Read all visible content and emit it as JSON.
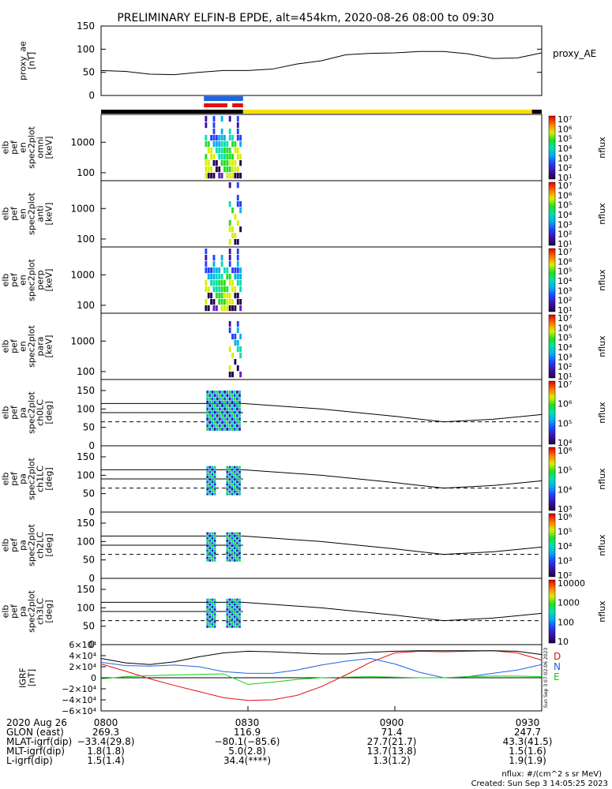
{
  "title": "PRELIMINARY ELFIN-B EPDE, alt=454km, 2020-08-26 08:00 to 09:30",
  "colors": {
    "frame": "#000000",
    "red": "#e01010",
    "blue": "#1e64e6",
    "yellow": "#f5e000",
    "green": "#10d010",
    "ae": "#000000"
  },
  "chart_data": [
    {
      "id": "proxy_ae",
      "type": "line",
      "ylabel": [
        "proxy_ae",
        "[nT]"
      ],
      "legend": "proxy_AE",
      "ylim": [
        0,
        150
      ],
      "yticks": [
        "150",
        "100",
        "50",
        "0"
      ],
      "x_minutes": [
        0,
        5,
        10,
        15,
        20,
        25,
        30,
        35,
        40,
        45,
        50,
        55,
        60,
        65,
        70,
        75,
        80,
        85,
        90
      ],
      "values": [
        54,
        52,
        46,
        45,
        50,
        54,
        54,
        57,
        68,
        75,
        88,
        91,
        92,
        95,
        95,
        90,
        80,
        81,
        92
      ]
    },
    {
      "id": "ribbons",
      "type": "bars",
      "segments": [
        {
          "color": "black",
          "from": 0,
          "to": 29.0
        },
        {
          "color": "yellow",
          "from": 29.0,
          "to": 88.0
        },
        {
          "color": "black",
          "from": 88.0,
          "to": 90
        }
      ],
      "blue_bar": {
        "from": 21.0,
        "to": 29.0
      },
      "red_bars": [
        {
          "from": 21.0,
          "to": 25.8
        },
        {
          "from": 26.8,
          "to": 29.0
        }
      ]
    },
    {
      "id": "en_omni",
      "type": "heatmap",
      "ylabel": [
        "elb",
        "pef",
        "en",
        "spec2plot",
        "omni",
        "[keV]"
      ],
      "yticks": [
        "1000",
        "100"
      ],
      "cbar_label": "nflux",
      "cbar_ticks": [
        "10⁷",
        "10⁶",
        "10⁵",
        "10⁴",
        "10³",
        "10²",
        "10¹"
      ]
    },
    {
      "id": "en_anti",
      "type": "heatmap",
      "ylabel": [
        "elb",
        "pef",
        "en",
        "spec2plot",
        "anti",
        "[keV]"
      ],
      "yticks": [
        "1000",
        "100"
      ],
      "cbar_label": "nflux",
      "cbar_ticks": [
        "10⁷",
        "10⁶",
        "10⁵",
        "10⁴",
        "10³",
        "10²",
        "10¹"
      ]
    },
    {
      "id": "en_perp",
      "type": "heatmap",
      "ylabel": [
        "elb",
        "pef",
        "en",
        "spec2plot",
        "perp",
        "[keV]"
      ],
      "yticks": [
        "1000",
        "100"
      ],
      "cbar_label": "nflux",
      "cbar_ticks": [
        "10⁷",
        "10⁶",
        "10⁵",
        "10⁴",
        "10³",
        "10²",
        "10¹"
      ]
    },
    {
      "id": "en_para",
      "type": "heatmap",
      "ylabel": [
        "elb",
        "pef",
        "en",
        "spec2plot",
        "para",
        "[keV]"
      ],
      "yticks": [
        "1000",
        "100"
      ],
      "cbar_label": "nflux",
      "cbar_ticks": [
        "10⁷",
        "10⁶",
        "10⁵",
        "10⁴",
        "10³",
        "10²",
        "10¹"
      ]
    },
    {
      "id": "pa_ch0",
      "type": "heatmap",
      "ylabel": [
        "elb",
        "pef",
        "pa",
        "spec2plot",
        "ch0LC",
        "[deg]"
      ],
      "yticks": [
        "150",
        "100",
        "50",
        "0"
      ],
      "cbar_label": "nflux",
      "cbar_ticks": [
        "10⁷",
        "10⁶",
        "10⁵",
        "10⁴"
      ]
    },
    {
      "id": "pa_ch1",
      "type": "heatmap",
      "ylabel": [
        "elb",
        "pef",
        "pa",
        "spec2plot",
        "ch1LC",
        "[deg]"
      ],
      "yticks": [
        "150",
        "100",
        "50",
        "0"
      ],
      "cbar_label": "nflux",
      "cbar_ticks": [
        "10⁶",
        "10⁵",
        "10⁴",
        "10³"
      ]
    },
    {
      "id": "pa_ch2",
      "type": "heatmap",
      "ylabel": [
        "elb",
        "pef",
        "pa",
        "spec2plot",
        "ch2LC",
        "[deg]"
      ],
      "yticks": [
        "150",
        "100",
        "50",
        "0"
      ],
      "cbar_label": "nflux",
      "cbar_ticks": [
        "10⁶",
        "10⁵",
        "10⁴",
        "10³",
        "10²"
      ]
    },
    {
      "id": "pa_ch3",
      "type": "heatmap",
      "ylabel": [
        "elb",
        "pef",
        "pa",
        "spec2plot",
        "ch3LC",
        "[deg]"
      ],
      "yticks": [
        "150",
        "100",
        "50",
        "0"
      ],
      "cbar_label": "nflux",
      "cbar_ticks": [
        "10000",
        "1000",
        "100",
        "10"
      ]
    },
    {
      "id": "igrf",
      "type": "line",
      "ylabel": [
        "IGRF",
        "[nT]"
      ],
      "ylim": [
        -60000,
        60000
      ],
      "yticks": [
        "6×10⁴",
        "4×10⁴",
        "2×10⁴",
        "0",
        "−2×10⁴",
        "−4×10⁴",
        "−6×10⁴"
      ],
      "x_minutes": [
        0,
        5,
        10,
        15,
        20,
        25,
        30,
        35,
        40,
        45,
        50,
        55,
        60,
        65,
        70,
        75,
        80,
        85,
        90
      ],
      "series": [
        {
          "name": "D",
          "color": "red",
          "values": [
            25000,
            12000,
            -2000,
            -14000,
            -25000,
            -36000,
            -41000,
            -40000,
            -32000,
            -16000,
            5000,
            28000,
            45000,
            48000,
            47000,
            48000,
            49000,
            45000,
            32000
          ]
        },
        {
          "name": "N",
          "color": "blue",
          "values": [
            28000,
            22000,
            21000,
            23000,
            20000,
            11000,
            8000,
            8000,
            14000,
            23000,
            30000,
            35000,
            25000,
            10000,
            0,
            2000,
            8000,
            14000,
            24000
          ]
        },
        {
          "name": "E",
          "color": "green",
          "values": [
            -2000,
            2000,
            4000,
            5000,
            6000,
            7000,
            -12000,
            -8000,
            -3000,
            0,
            1000,
            2000,
            1000,
            0,
            0,
            2000,
            3000,
            3000,
            2000
          ]
        },
        {
          "color": "black",
          "values": [
            35000,
            27000,
            24000,
            29000,
            38000,
            45000,
            48000,
            47000,
            45000,
            43000,
            43000,
            46000,
            48000,
            49000,
            49000,
            49000,
            49000,
            48000,
            42000
          ]
        }
      ],
      "sidebar_text": "Sun Sep  3 07:02:06 2023"
    }
  ],
  "footer": {
    "rows": [
      {
        "label": "2020 Aug 26",
        "values": [
          "0800",
          "0830",
          "0900",
          "0930"
        ]
      },
      {
        "label": "GLON (east)",
        "values": [
          "269.3",
          "116.9",
          "71.4",
          "247.7"
        ]
      },
      {
        "label": "MLAT-igrf(dip)",
        "values": [
          "−33.4(29.8)",
          "−80.1(−85.6)",
          "27.7(21.7)",
          "43.3(41.5)"
        ]
      },
      {
        "label": "MLT-igrf(dip)",
        "values": [
          "1.8(1.8)",
          "5.0(2.8)",
          "13.7(13.8)",
          "1.5(1.6)"
        ]
      },
      {
        "label": "L-igrf(dip)",
        "values": [
          "1.5(1.4)",
          "34.4(****)",
          "1.3(1.2)",
          "1.9(1.9)"
        ]
      }
    ],
    "units_note": "nflux: #/(cm^2 s sr MeV)",
    "created": "Created: Sun Sep  3 14:05:25 2023"
  }
}
